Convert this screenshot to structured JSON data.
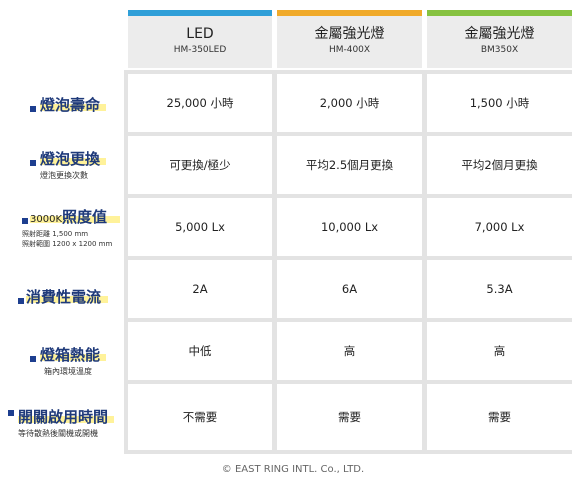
{
  "colors": {
    "led_bar": "#2f9fd8",
    "mh400_bar": "#f0aa2a",
    "bm350_bar": "#86c240",
    "label_text": "#1f3a7a",
    "highlight": "#fff29a"
  },
  "columns": [
    {
      "title": "LED",
      "model": "HM-350LED"
    },
    {
      "title": "金屬強光燈",
      "model": "HM-400X"
    },
    {
      "title": "金屬強光燈",
      "model": "BM350X"
    }
  ],
  "rows": [
    {
      "label": "燈泡壽命",
      "sub": "",
      "values": [
        "25,000 小時",
        "2,000 小時",
        "1,500 小時"
      ]
    },
    {
      "label": "燈泡更換",
      "sub": "燈泡更換次數",
      "values": [
        "可更換/極少",
        "平均2.5個月更換",
        "平均2個月更換"
      ]
    },
    {
      "prefix": "3000K",
      "label": "照度值",
      "sub1": "照射距離 1,500 mm",
      "sub2": "照射範圍 1200 x 1200 mm",
      "values": [
        "5,000 Lx",
        "10,000 Lx",
        "7,000 Lx"
      ]
    },
    {
      "label": "消費性電流",
      "sub": "",
      "values": [
        "2A",
        "6A",
        "5.3A"
      ]
    },
    {
      "label": "燈箱熱能",
      "sub": "箱內環境溫度",
      "values": [
        "中低",
        "高",
        "高"
      ]
    },
    {
      "label": "開關啟用時間",
      "sub": "等待散熱後關機或開機",
      "values": [
        "不需要",
        "需要",
        "需要"
      ]
    }
  ],
  "footer": "© EAST RING INTL. Co., LTD."
}
